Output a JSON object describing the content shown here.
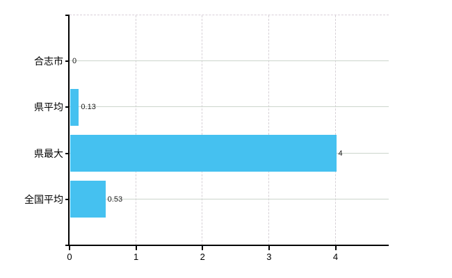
{
  "chart_data": {
    "type": "bar",
    "orientation": "horizontal",
    "title": "",
    "xlabel": "",
    "ylabel": "",
    "categories": [
      "合志市",
      "県平均",
      "県最大",
      "全国平均"
    ],
    "values": [
      0,
      0.13,
      4,
      0.53
    ],
    "value_labels": [
      "0",
      "0.13",
      "4",
      "0.53"
    ],
    "x_ticks": [
      "0",
      "1",
      "2",
      "3",
      "4"
    ],
    "x_tick_values": [
      0,
      1,
      2,
      3,
      4
    ],
    "xlim": [
      0,
      4.8
    ],
    "legend": "none",
    "grid": {
      "horizontal": "solid line at each category row",
      "vertical": "dashed line at each x tick > 0",
      "top_border": "dashed"
    },
    "colors": {
      "bar": "#45c1f0",
      "axis": "#000000",
      "gridline_horizontal": "#ccd5cc",
      "gridline_vertical": "#d6d0d6",
      "top_border": "#d8ced8",
      "background": "#ffffff",
      "text": "#000000"
    }
  }
}
